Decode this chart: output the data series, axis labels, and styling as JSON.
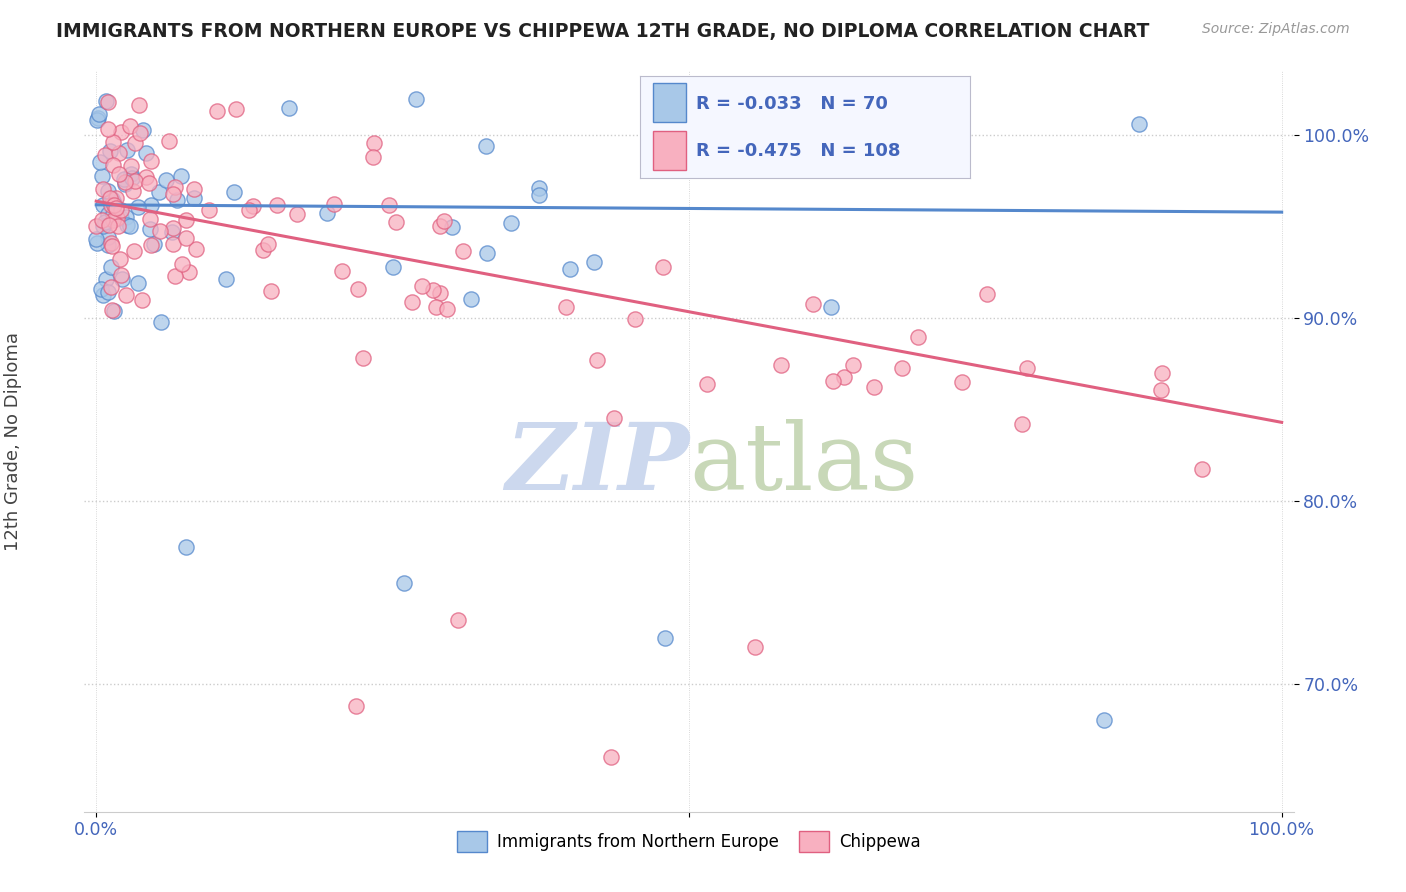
{
  "title": "IMMIGRANTS FROM NORTHERN EUROPE VS CHIPPEWA 12TH GRADE, NO DIPLOMA CORRELATION CHART",
  "source_text": "Source: ZipAtlas.com",
  "ylabel": "12th Grade, No Diploma",
  "y_tick_values": [
    0.7,
    0.8,
    0.9,
    1.0
  ],
  "y_tick_labels": [
    "70.0%",
    "80.0%",
    "90.0%",
    "100.0%"
  ],
  "x_tick_values": [
    0.0,
    0.5,
    1.0
  ],
  "x_tick_labels": [
    "0.0%",
    "",
    "100.0%"
  ],
  "xlim": [
    -0.01,
    1.01
  ],
  "ylim": [
    0.63,
    1.035
  ],
  "legend_R1": "-0.033",
  "legend_N1": "70",
  "legend_R2": "-0.475",
  "legend_N2": "108",
  "blue_face_color": "#a8c8e8",
  "blue_edge_color": "#5588cc",
  "pink_face_color": "#f8b0c0",
  "pink_edge_color": "#e06080",
  "blue_line_color": "#5588cc",
  "pink_line_color": "#e06080",
  "legend_text_color": "#4466bb",
  "watermark_color": "#ccd8ee",
  "title_color": "#222222",
  "source_color": "#999999",
  "tick_color": "#4466bb",
  "grid_color": "#cccccc",
  "marker_size": 120,
  "blue_line_start_y": 0.962,
  "blue_line_end_y": 0.958,
  "pink_line_start_y": 0.964,
  "pink_line_end_y": 0.843
}
